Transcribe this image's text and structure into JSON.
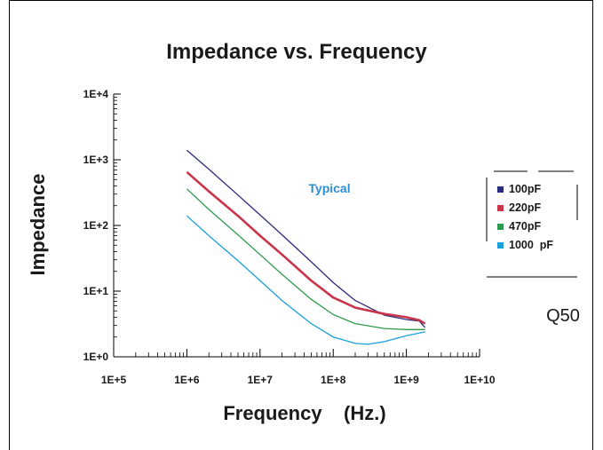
{
  "chart_data": {
    "type": "line",
    "title": "Impedance vs. Frequency",
    "xlabel": "Frequency    (Hz.)",
    "ylabel": "Impedance",
    "x_scale": "log",
    "y_scale": "log",
    "xlim": [
      100000,
      10000000000
    ],
    "ylim": [
      1,
      10000
    ],
    "x_ticks": [
      "1E+5",
      "1E+6",
      "1E+7",
      "1E+8",
      "1E+9",
      "1E+10"
    ],
    "y_ticks": [
      "1E+0",
      "1E+1",
      "1E+2",
      "1E+3",
      "1E+4"
    ],
    "grid": false,
    "legend_position": "right",
    "annotations": [
      "Typical",
      "Q50"
    ],
    "series": [
      {
        "name": "100pF",
        "color": "#2a2a7a",
        "x": [
          1000000,
          2000000,
          5000000,
          10000000,
          20000000,
          50000000,
          100000000,
          200000000,
          500000000,
          1000000000,
          1500000000,
          1800000000
        ],
        "y": [
          1400,
          720,
          290,
          145,
          72,
          28,
          13.5,
          7.2,
          4.3,
          3.7,
          3.5,
          2.8
        ]
      },
      {
        "name": "220pF",
        "color": "#c8344a",
        "x": [
          1000000,
          2000000,
          5000000,
          10000000,
          20000000,
          50000000,
          100000000,
          200000000,
          500000000,
          1000000000,
          1500000000,
          1800000000
        ],
        "y": [
          650,
          330,
          140,
          70,
          36,
          14.5,
          8,
          5.6,
          4.5,
          4,
          3.6,
          3.2
        ]
      },
      {
        "name": "470pF",
        "color": "#2e9a4e",
        "x": [
          1000000,
          2000000,
          5000000,
          10000000,
          20000000,
          50000000,
          100000000,
          200000000,
          500000000,
          1000000000,
          1500000000,
          1800000000
        ],
        "y": [
          360,
          175,
          72,
          36,
          18,
          7.5,
          4.4,
          3.2,
          2.7,
          2.6,
          2.6,
          2.6
        ]
      },
      {
        "name": "1000  pF",
        "color": "#1aa0dc",
        "x": [
          1000000,
          2000000,
          5000000,
          10000000,
          20000000,
          50000000,
          100000000,
          200000000,
          300000000,
          500000000,
          1000000000,
          1800000000
        ],
        "y": [
          140,
          70,
          29,
          14.5,
          7.2,
          3.2,
          2,
          1.6,
          1.55,
          1.7,
          2.1,
          2.4
        ]
      }
    ]
  }
}
